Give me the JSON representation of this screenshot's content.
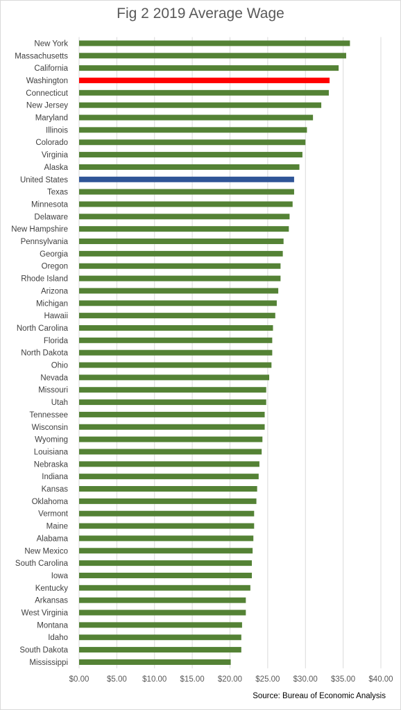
{
  "chart_data": {
    "type": "bar",
    "orientation": "horizontal",
    "title": "Fig 2 2019 Average Wage",
    "source": "Source: Bureau of Economic Analysis",
    "xlim": [
      0,
      40
    ],
    "x_ticks": [
      "$0.00",
      "$5.00",
      "$10.00",
      "$15.00",
      "$20.00",
      "$25.00",
      "$30.00",
      "$35.00",
      "$40.00"
    ],
    "grid": "vertical",
    "default_color": "#548235",
    "highlights": {
      "Washington": "#ff0000",
      "United States": "#2f5597"
    },
    "categories": [
      "New York",
      "Massachusetts",
      "California",
      "Washington",
      "Connecticut",
      "New Jersey",
      "Maryland",
      "Illinois",
      "Colorado",
      "Virginia",
      "Alaska",
      "United States",
      "Texas",
      "Minnesota",
      "Delaware",
      "New Hampshire",
      "Pennsylvania",
      "Georgia",
      "Oregon",
      "Rhode Island",
      "Arizona",
      "Michigan",
      "Hawaii",
      "North Carolina",
      "Florida",
      "North Dakota",
      "Ohio",
      "Nevada",
      "Missouri",
      "Utah",
      "Tennessee",
      "Wisconsin",
      "Wyoming",
      "Louisiana",
      "Nebraska",
      "Indiana",
      "Kansas",
      "Oklahoma",
      "Vermont",
      "Maine",
      "Alabama",
      "New Mexico",
      "South Carolina",
      "Iowa",
      "Kentucky",
      "Arkansas",
      "West Virginia",
      "Montana",
      "Idaho",
      "South Dakota",
      "Mississippi"
    ],
    "values": [
      35.9,
      35.4,
      34.4,
      33.2,
      33.1,
      32.1,
      31.0,
      30.2,
      30.0,
      29.6,
      29.2,
      28.5,
      28.5,
      28.3,
      27.9,
      27.8,
      27.1,
      27.0,
      26.7,
      26.7,
      26.4,
      26.2,
      26.0,
      25.7,
      25.6,
      25.6,
      25.5,
      25.2,
      24.8,
      24.8,
      24.6,
      24.6,
      24.3,
      24.2,
      23.9,
      23.8,
      23.6,
      23.5,
      23.2,
      23.2,
      23.1,
      23.0,
      22.9,
      22.9,
      22.7,
      22.1,
      22.1,
      21.6,
      21.5,
      21.5,
      20.1
    ]
  }
}
